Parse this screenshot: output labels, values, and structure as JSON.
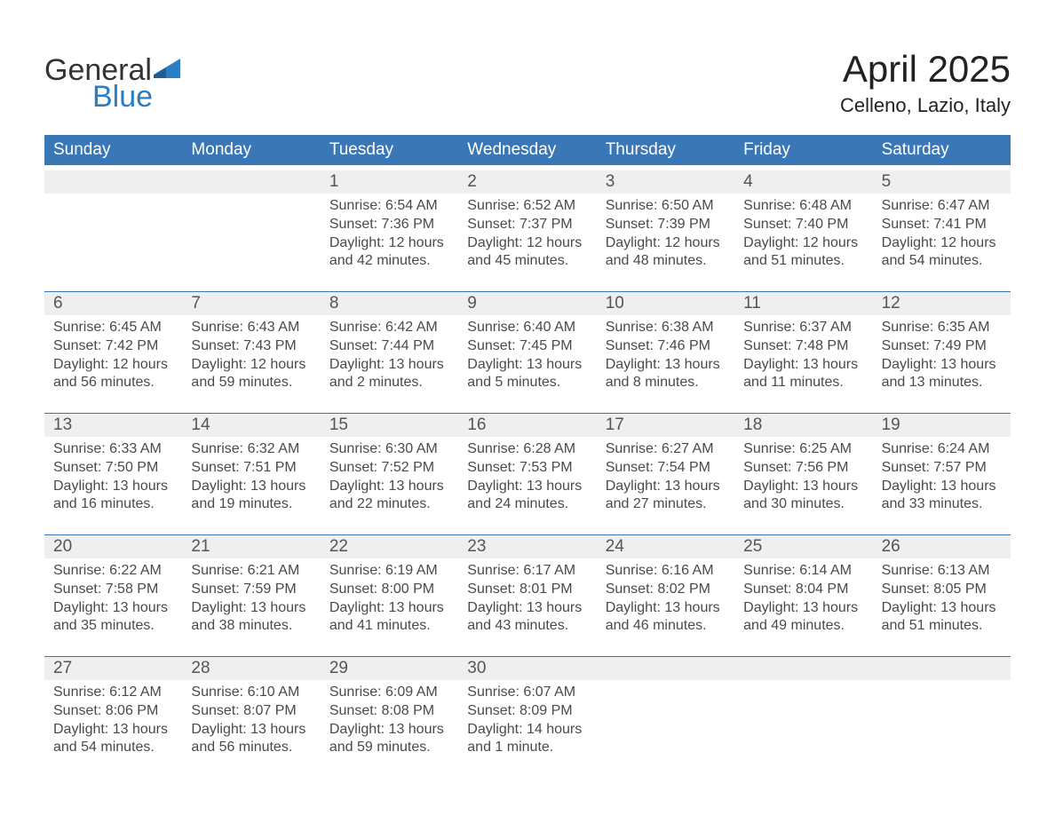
{
  "logo": {
    "top": "General",
    "bottom": "Blue"
  },
  "title": "April 2025",
  "subtitle": "Celleno, Lazio, Italy",
  "colors": {
    "accent": "#3a77b6",
    "logo_blue": "#2b7ec2",
    "gray_strip": "#efefef",
    "background": "#ffffff",
    "text_dark": "#2f2f2f",
    "text_mid": "#4a4a4a"
  },
  "days_of_week": [
    "Sunday",
    "Monday",
    "Tuesday",
    "Wednesday",
    "Thursday",
    "Friday",
    "Saturday"
  ],
  "weeks": [
    [
      {
        "n": "",
        "sunrise": "",
        "sunset": "",
        "daylight": ""
      },
      {
        "n": "",
        "sunrise": "",
        "sunset": "",
        "daylight": ""
      },
      {
        "n": "1",
        "sunrise": "Sunrise: 6:54 AM",
        "sunset": "Sunset: 7:36 PM",
        "daylight": "Daylight: 12 hours and 42 minutes."
      },
      {
        "n": "2",
        "sunrise": "Sunrise: 6:52 AM",
        "sunset": "Sunset: 7:37 PM",
        "daylight": "Daylight: 12 hours and 45 minutes."
      },
      {
        "n": "3",
        "sunrise": "Sunrise: 6:50 AM",
        "sunset": "Sunset: 7:39 PM",
        "daylight": "Daylight: 12 hours and 48 minutes."
      },
      {
        "n": "4",
        "sunrise": "Sunrise: 6:48 AM",
        "sunset": "Sunset: 7:40 PM",
        "daylight": "Daylight: 12 hours and 51 minutes."
      },
      {
        "n": "5",
        "sunrise": "Sunrise: 6:47 AM",
        "sunset": "Sunset: 7:41 PM",
        "daylight": "Daylight: 12 hours and 54 minutes."
      }
    ],
    [
      {
        "n": "6",
        "sunrise": "Sunrise: 6:45 AM",
        "sunset": "Sunset: 7:42 PM",
        "daylight": "Daylight: 12 hours and 56 minutes."
      },
      {
        "n": "7",
        "sunrise": "Sunrise: 6:43 AM",
        "sunset": "Sunset: 7:43 PM",
        "daylight": "Daylight: 12 hours and 59 minutes."
      },
      {
        "n": "8",
        "sunrise": "Sunrise: 6:42 AM",
        "sunset": "Sunset: 7:44 PM",
        "daylight": "Daylight: 13 hours and 2 minutes."
      },
      {
        "n": "9",
        "sunrise": "Sunrise: 6:40 AM",
        "sunset": "Sunset: 7:45 PM",
        "daylight": "Daylight: 13 hours and 5 minutes."
      },
      {
        "n": "10",
        "sunrise": "Sunrise: 6:38 AM",
        "sunset": "Sunset: 7:46 PM",
        "daylight": "Daylight: 13 hours and 8 minutes."
      },
      {
        "n": "11",
        "sunrise": "Sunrise: 6:37 AM",
        "sunset": "Sunset: 7:48 PM",
        "daylight": "Daylight: 13 hours and 11 minutes."
      },
      {
        "n": "12",
        "sunrise": "Sunrise: 6:35 AM",
        "sunset": "Sunset: 7:49 PM",
        "daylight": "Daylight: 13 hours and 13 minutes."
      }
    ],
    [
      {
        "n": "13",
        "sunrise": "Sunrise: 6:33 AM",
        "sunset": "Sunset: 7:50 PM",
        "daylight": "Daylight: 13 hours and 16 minutes."
      },
      {
        "n": "14",
        "sunrise": "Sunrise: 6:32 AM",
        "sunset": "Sunset: 7:51 PM",
        "daylight": "Daylight: 13 hours and 19 minutes."
      },
      {
        "n": "15",
        "sunrise": "Sunrise: 6:30 AM",
        "sunset": "Sunset: 7:52 PM",
        "daylight": "Daylight: 13 hours and 22 minutes."
      },
      {
        "n": "16",
        "sunrise": "Sunrise: 6:28 AM",
        "sunset": "Sunset: 7:53 PM",
        "daylight": "Daylight: 13 hours and 24 minutes."
      },
      {
        "n": "17",
        "sunrise": "Sunrise: 6:27 AM",
        "sunset": "Sunset: 7:54 PM",
        "daylight": "Daylight: 13 hours and 27 minutes."
      },
      {
        "n": "18",
        "sunrise": "Sunrise: 6:25 AM",
        "sunset": "Sunset: 7:56 PM",
        "daylight": "Daylight: 13 hours and 30 minutes."
      },
      {
        "n": "19",
        "sunrise": "Sunrise: 6:24 AM",
        "sunset": "Sunset: 7:57 PM",
        "daylight": "Daylight: 13 hours and 33 minutes."
      }
    ],
    [
      {
        "n": "20",
        "sunrise": "Sunrise: 6:22 AM",
        "sunset": "Sunset: 7:58 PM",
        "daylight": "Daylight: 13 hours and 35 minutes."
      },
      {
        "n": "21",
        "sunrise": "Sunrise: 6:21 AM",
        "sunset": "Sunset: 7:59 PM",
        "daylight": "Daylight: 13 hours and 38 minutes."
      },
      {
        "n": "22",
        "sunrise": "Sunrise: 6:19 AM",
        "sunset": "Sunset: 8:00 PM",
        "daylight": "Daylight: 13 hours and 41 minutes."
      },
      {
        "n": "23",
        "sunrise": "Sunrise: 6:17 AM",
        "sunset": "Sunset: 8:01 PM",
        "daylight": "Daylight: 13 hours and 43 minutes."
      },
      {
        "n": "24",
        "sunrise": "Sunrise: 6:16 AM",
        "sunset": "Sunset: 8:02 PM",
        "daylight": "Daylight: 13 hours and 46 minutes."
      },
      {
        "n": "25",
        "sunrise": "Sunrise: 6:14 AM",
        "sunset": "Sunset: 8:04 PM",
        "daylight": "Daylight: 13 hours and 49 minutes."
      },
      {
        "n": "26",
        "sunrise": "Sunrise: 6:13 AM",
        "sunset": "Sunset: 8:05 PM",
        "daylight": "Daylight: 13 hours and 51 minutes."
      }
    ],
    [
      {
        "n": "27",
        "sunrise": "Sunrise: 6:12 AM",
        "sunset": "Sunset: 8:06 PM",
        "daylight": "Daylight: 13 hours and 54 minutes."
      },
      {
        "n": "28",
        "sunrise": "Sunrise: 6:10 AM",
        "sunset": "Sunset: 8:07 PM",
        "daylight": "Daylight: 13 hours and 56 minutes."
      },
      {
        "n": "29",
        "sunrise": "Sunrise: 6:09 AM",
        "sunset": "Sunset: 8:08 PM",
        "daylight": "Daylight: 13 hours and 59 minutes."
      },
      {
        "n": "30",
        "sunrise": "Sunrise: 6:07 AM",
        "sunset": "Sunset: 8:09 PM",
        "daylight": "Daylight: 14 hours and 1 minute."
      },
      {
        "n": "",
        "sunrise": "",
        "sunset": "",
        "daylight": ""
      },
      {
        "n": "",
        "sunrise": "",
        "sunset": "",
        "daylight": ""
      },
      {
        "n": "",
        "sunrise": "",
        "sunset": "",
        "daylight": ""
      }
    ]
  ]
}
